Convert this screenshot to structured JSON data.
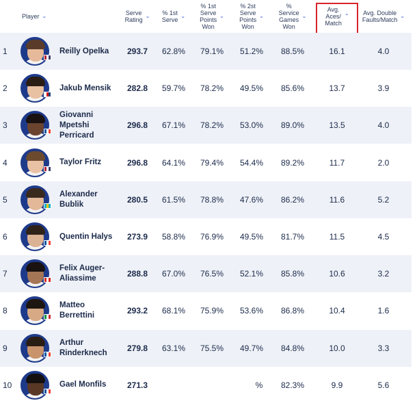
{
  "header": {
    "player": "Player",
    "serve_rating": "Serve\nRating",
    "first_serve": "% 1st\nServe",
    "first_serve_points_won": "% 1st\nServe\nPoints\nWon",
    "second_serve_points_won": "% 2st\nServe\nPoints\nWon",
    "service_games_won": "%\nService\nGames\nWon",
    "avg_aces": "Avg.\nAces/\nMatch",
    "avg_double_faults": "Avg. Double\nFaults/Match"
  },
  "rows": [
    {
      "rank": "1",
      "name": "Reilly Opelka",
      "rating": "293.7",
      "first_serve": "62.8%",
      "first_won": "79.1%",
      "second_won": "51.2%",
      "games_won": "88.5%",
      "aces": "16.1",
      "dfs": "4.0",
      "flag": [
        "#b22234",
        "#ffffff",
        "#3c3b6e"
      ],
      "skin": "#e6b99a",
      "hair": "#5a3b2a"
    },
    {
      "rank": "2",
      "name": "Jakub Mensik",
      "rating": "282.8",
      "first_serve": "59.7%",
      "first_won": "78.2%",
      "second_won": "49.5%",
      "games_won": "85.6%",
      "aces": "13.7",
      "dfs": "3.9",
      "flag": [
        "#ffffff",
        "#d7141a",
        "#11457e"
      ],
      "skin": "#e8c0a2",
      "hair": "#2a1d14"
    },
    {
      "rank": "3",
      "name": "Giovanni Mpetshi Perricard",
      "rating": "296.8",
      "first_serve": "67.1%",
      "first_won": "78.2%",
      "second_won": "53.0%",
      "games_won": "89.0%",
      "aces": "13.5",
      "dfs": "4.0",
      "flag": [
        "#0055a4",
        "#ffffff",
        "#ef4135"
      ],
      "skin": "#6b4430",
      "hair": "#1a1210"
    },
    {
      "rank": "4",
      "name": "Taylor Fritz",
      "rating": "296.8",
      "first_serve": "64.1%",
      "first_won": "79.4%",
      "second_won": "54.4%",
      "games_won": "89.2%",
      "aces": "11.7",
      "dfs": "2.0",
      "flag": [
        "#b22234",
        "#ffffff",
        "#3c3b6e"
      ],
      "skin": "#e9c1a4",
      "hair": "#6b4a2e"
    },
    {
      "rank": "5",
      "name": "Alexander Bublik",
      "rating": "280.5",
      "first_serve": "61.5%",
      "first_won": "78.8%",
      "second_won": "47.6%",
      "games_won": "86.2%",
      "aces": "11.6",
      "dfs": "5.2",
      "flag": [
        "#00afca",
        "#fec50c",
        "#00afca"
      ],
      "skin": "#e2b898",
      "hair": "#3a2a1e"
    },
    {
      "rank": "6",
      "name": "Quentin Halys",
      "rating": "273.9",
      "first_serve": "58.8%",
      "first_won": "76.9%",
      "second_won": "49.5%",
      "games_won": "81.7%",
      "aces": "11.5",
      "dfs": "4.5",
      "flag": [
        "#0055a4",
        "#ffffff",
        "#ef4135"
      ],
      "skin": "#dcb294",
      "hair": "#2f2218"
    },
    {
      "rank": "7",
      "name": "Felix Auger-Aliassime",
      "rating": "288.8",
      "first_serve": "67.0%",
      "first_won": "76.5%",
      "second_won": "52.1%",
      "games_won": "85.8%",
      "aces": "10.6",
      "dfs": "3.2",
      "flag": [
        "#d52b1e",
        "#ffffff",
        "#d52b1e"
      ],
      "skin": "#a57656",
      "hair": "#1a1210"
    },
    {
      "rank": "8",
      "name": "Matteo Berrettini",
      "rating": "293.2",
      "first_serve": "68.1%",
      "first_won": "75.9%",
      "second_won": "53.6%",
      "games_won": "86.8%",
      "aces": "10.4",
      "dfs": "1.6",
      "flag": [
        "#009246",
        "#ffffff",
        "#ce2b37"
      ],
      "skin": "#d7a985",
      "hair": "#1e1610"
    },
    {
      "rank": "9",
      "name": "Arthur Rinderknech",
      "rating": "279.8",
      "first_serve": "63.1%",
      "first_won": "75.5%",
      "second_won": "49.7%",
      "games_won": "84.8%",
      "aces": "10.0",
      "dfs": "3.3",
      "flag": [
        "#0055a4",
        "#ffffff",
        "#ef4135"
      ],
      "skin": "#c9946c",
      "hair": "#2a1d14"
    },
    {
      "rank": "10",
      "name": "Gael Monfils",
      "rating": "271.3",
      "first_serve": "",
      "first_won": "",
      "second_won": "",
      "games_won": "82.3%",
      "aces": "9.9",
      "dfs": "5.6",
      "flag": [
        "#0055a4",
        "#ffffff",
        "#ef4135"
      ],
      "skin": "#5a3826",
      "hair": "#141010"
    }
  ],
  "row_10_partial_text": "%",
  "colors": {
    "accent": "#3b5bdb",
    "highlight_border": "#d8232a",
    "alt_row": "#eef1f7",
    "text": "#1b2a4a"
  },
  "icons": {
    "sort": "chevron-down-icon",
    "sort_active": "chevron-up-icon"
  }
}
